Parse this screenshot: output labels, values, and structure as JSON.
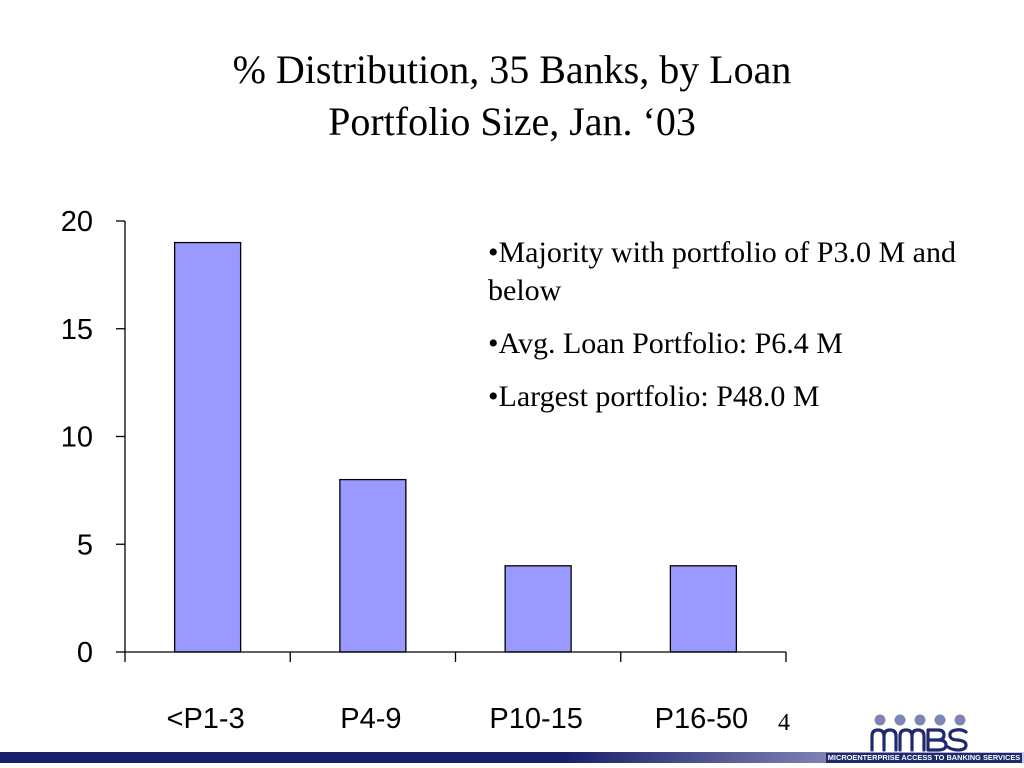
{
  "slide": {
    "title_line1": "% Distribution, 35 Banks, by Loan",
    "title_line2": "Portfolio Size, Jan. ‘03",
    "bullets": [
      "•Majority with portfolio of P3.0 M and below",
      "•Avg. Loan Portfolio: P6.4 M",
      "•Largest portfolio:  P48.0 M"
    ],
    "page_number": "4",
    "logo_caption": "MICROENTERPRISE ACCESS TO BANKING SERVICES"
  },
  "colors": {
    "bar_fill": "#9999FF",
    "bar_stroke": "#000000",
    "footer_dark": "#1a1f6b",
    "footer_light": "#c8cce8",
    "logo": "#1f2a6e",
    "logo_dots": "#7d86b5"
  },
  "chart_data": {
    "type": "bar",
    "title": "% Distribution, 35 Banks, by Loan Portfolio Size, Jan. ‘03",
    "categories": [
      "<P1-3",
      "P4-9",
      "P10-15",
      "P16-50"
    ],
    "values": [
      19,
      8,
      4,
      4
    ],
    "yticks": [
      0,
      5,
      10,
      15,
      20
    ],
    "ylim": [
      0,
      20
    ],
    "xlabel": "",
    "ylabel": "",
    "grid": false,
    "legend": "none"
  }
}
